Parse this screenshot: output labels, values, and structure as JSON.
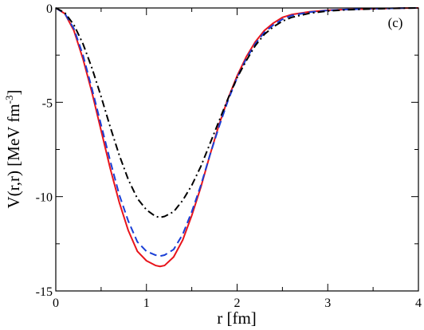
{
  "chart_data": {
    "type": "line",
    "title": "",
    "panel_label": "(c)",
    "xlabel": "r [fm]",
    "ylabel": {
      "main": "V(r,r) [MeV fm",
      "superscript": "-3",
      "close": "]"
    },
    "xlim": [
      0,
      4
    ],
    "ylim": [
      -15,
      0
    ],
    "x_ticks": [
      0,
      1,
      2,
      3,
      4
    ],
    "x_tick_labels": [
      "0",
      "1",
      "2",
      "3",
      "4"
    ],
    "y_ticks": [
      0,
      -5,
      -10,
      -15
    ],
    "y_tick_labels": [
      "0",
      "-5",
      "-10",
      "-15"
    ],
    "grid": false,
    "legend": "none",
    "series": [
      {
        "style": "solid",
        "color": "#e8141b",
        "x": [
          0,
          0.1,
          0.2,
          0.3,
          0.4,
          0.5,
          0.6,
          0.7,
          0.8,
          0.9,
          1.0,
          1.1,
          1.15,
          1.2,
          1.3,
          1.4,
          1.5,
          1.6,
          1.7,
          1.8,
          1.9,
          2.0,
          2.1,
          2.2,
          2.3,
          2.4,
          2.5,
          2.6,
          2.8,
          3.0,
          3.2,
          3.5,
          3.8,
          4.0
        ],
        "y": [
          0,
          -0.3,
          -1.2,
          -2.7,
          -4.5,
          -6.5,
          -8.5,
          -10.3,
          -11.8,
          -12.9,
          -13.4,
          -13.65,
          -13.7,
          -13.65,
          -13.2,
          -12.3,
          -11.0,
          -9.5,
          -7.8,
          -6.2,
          -4.8,
          -3.6,
          -2.6,
          -1.8,
          -1.2,
          -0.8,
          -0.5,
          -0.35,
          -0.2,
          -0.12,
          -0.08,
          -0.04,
          -0.01,
          0
        ]
      },
      {
        "style": "dashed",
        "color": "#1a3fd6",
        "x": [
          0,
          0.1,
          0.2,
          0.3,
          0.4,
          0.5,
          0.6,
          0.7,
          0.8,
          0.9,
          1.0,
          1.1,
          1.15,
          1.2,
          1.3,
          1.4,
          1.5,
          1.6,
          1.7,
          1.8,
          1.9,
          2.0,
          2.1,
          2.2,
          2.3,
          2.4,
          2.5,
          2.6,
          2.8,
          3.0,
          3.2,
          3.5,
          3.8,
          4.0
        ],
        "y": [
          0,
          -0.3,
          -1.1,
          -2.5,
          -4.3,
          -6.2,
          -8.1,
          -9.9,
          -11.3,
          -12.4,
          -12.9,
          -13.1,
          -13.15,
          -13.1,
          -12.8,
          -12.0,
          -10.8,
          -9.4,
          -7.8,
          -6.3,
          -4.9,
          -3.7,
          -2.7,
          -1.9,
          -1.3,
          -0.9,
          -0.6,
          -0.4,
          -0.22,
          -0.13,
          -0.08,
          -0.04,
          -0.01,
          0
        ]
      },
      {
        "style": "dashdot",
        "color": "#000000",
        "x": [
          0,
          0.1,
          0.2,
          0.3,
          0.4,
          0.5,
          0.6,
          0.7,
          0.8,
          0.9,
          1.0,
          1.1,
          1.15,
          1.2,
          1.3,
          1.4,
          1.5,
          1.6,
          1.7,
          1.8,
          1.9,
          2.0,
          2.1,
          2.2,
          2.3,
          2.4,
          2.5,
          2.6,
          2.8,
          3.0,
          3.2,
          3.5,
          3.8,
          4.0
        ],
        "y": [
          0,
          -0.25,
          -0.9,
          -1.9,
          -3.2,
          -4.7,
          -6.3,
          -7.8,
          -9.1,
          -10.1,
          -10.7,
          -11.05,
          -11.1,
          -11.05,
          -10.8,
          -10.2,
          -9.4,
          -8.4,
          -7.2,
          -6.0,
          -4.8,
          -3.7,
          -2.8,
          -2.0,
          -1.4,
          -1.0,
          -0.7,
          -0.5,
          -0.28,
          -0.16,
          -0.1,
          -0.05,
          -0.01,
          0
        ]
      }
    ]
  }
}
